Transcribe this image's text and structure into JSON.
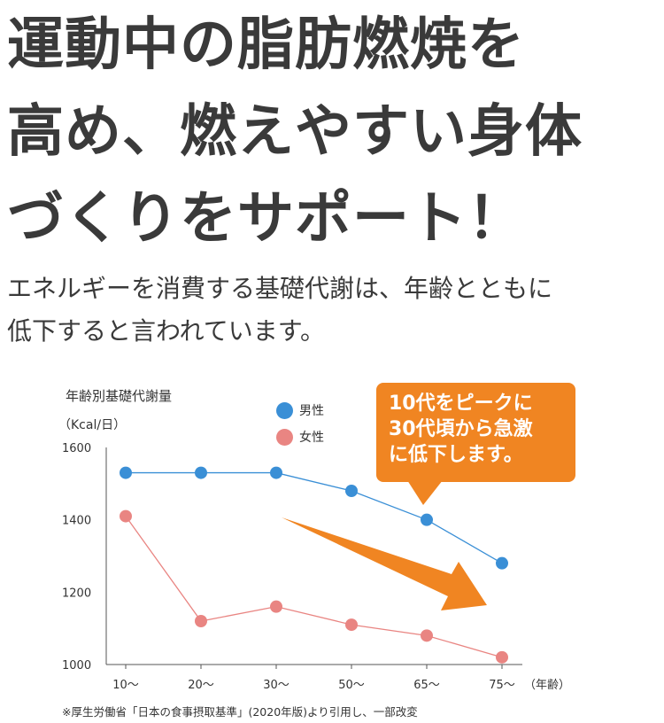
{
  "headline": [
    "運動中の脂肪燃焼を",
    "高め、燃えやすい身体",
    "づくりをサポート！"
  ],
  "intro": [
    "エネルギーを消費する基礎代謝は、年齢とともに",
    "低下すると言われています。"
  ],
  "callout": [
    "10代をピークに",
    "30代頃から急激",
    "に低下します。"
  ],
  "source_note": "※厚生労働省「日本の食事摂取基準」(2020年版)より引用し、一部改変",
  "colors": {
    "male": "#3a8fd6",
    "female": "#e98582",
    "accent": "#f08522",
    "axis": "#555555"
  },
  "chart_data": {
    "type": "line",
    "title": "年齢別基礎代謝量",
    "ylabel": "（Kcal/日）",
    "xlabel": "（年齢）",
    "categories": [
      "10～",
      "20～",
      "30～",
      "50～",
      "65～",
      "75～"
    ],
    "y_ticks": [
      1000,
      1200,
      1400,
      1600
    ],
    "ylim": [
      1000,
      1600
    ],
    "grid": false,
    "legend": "top-center",
    "series": [
      {
        "name": "男性",
        "color": "#3a8fd6",
        "values": [
          1530,
          1530,
          1530,
          1480,
          1400,
          1280
        ]
      },
      {
        "name": "女性",
        "color": "#e98582",
        "values": [
          1410,
          1120,
          1160,
          1110,
          1080,
          1020
        ]
      }
    ],
    "annotation_arrow": "decreasing trend"
  }
}
